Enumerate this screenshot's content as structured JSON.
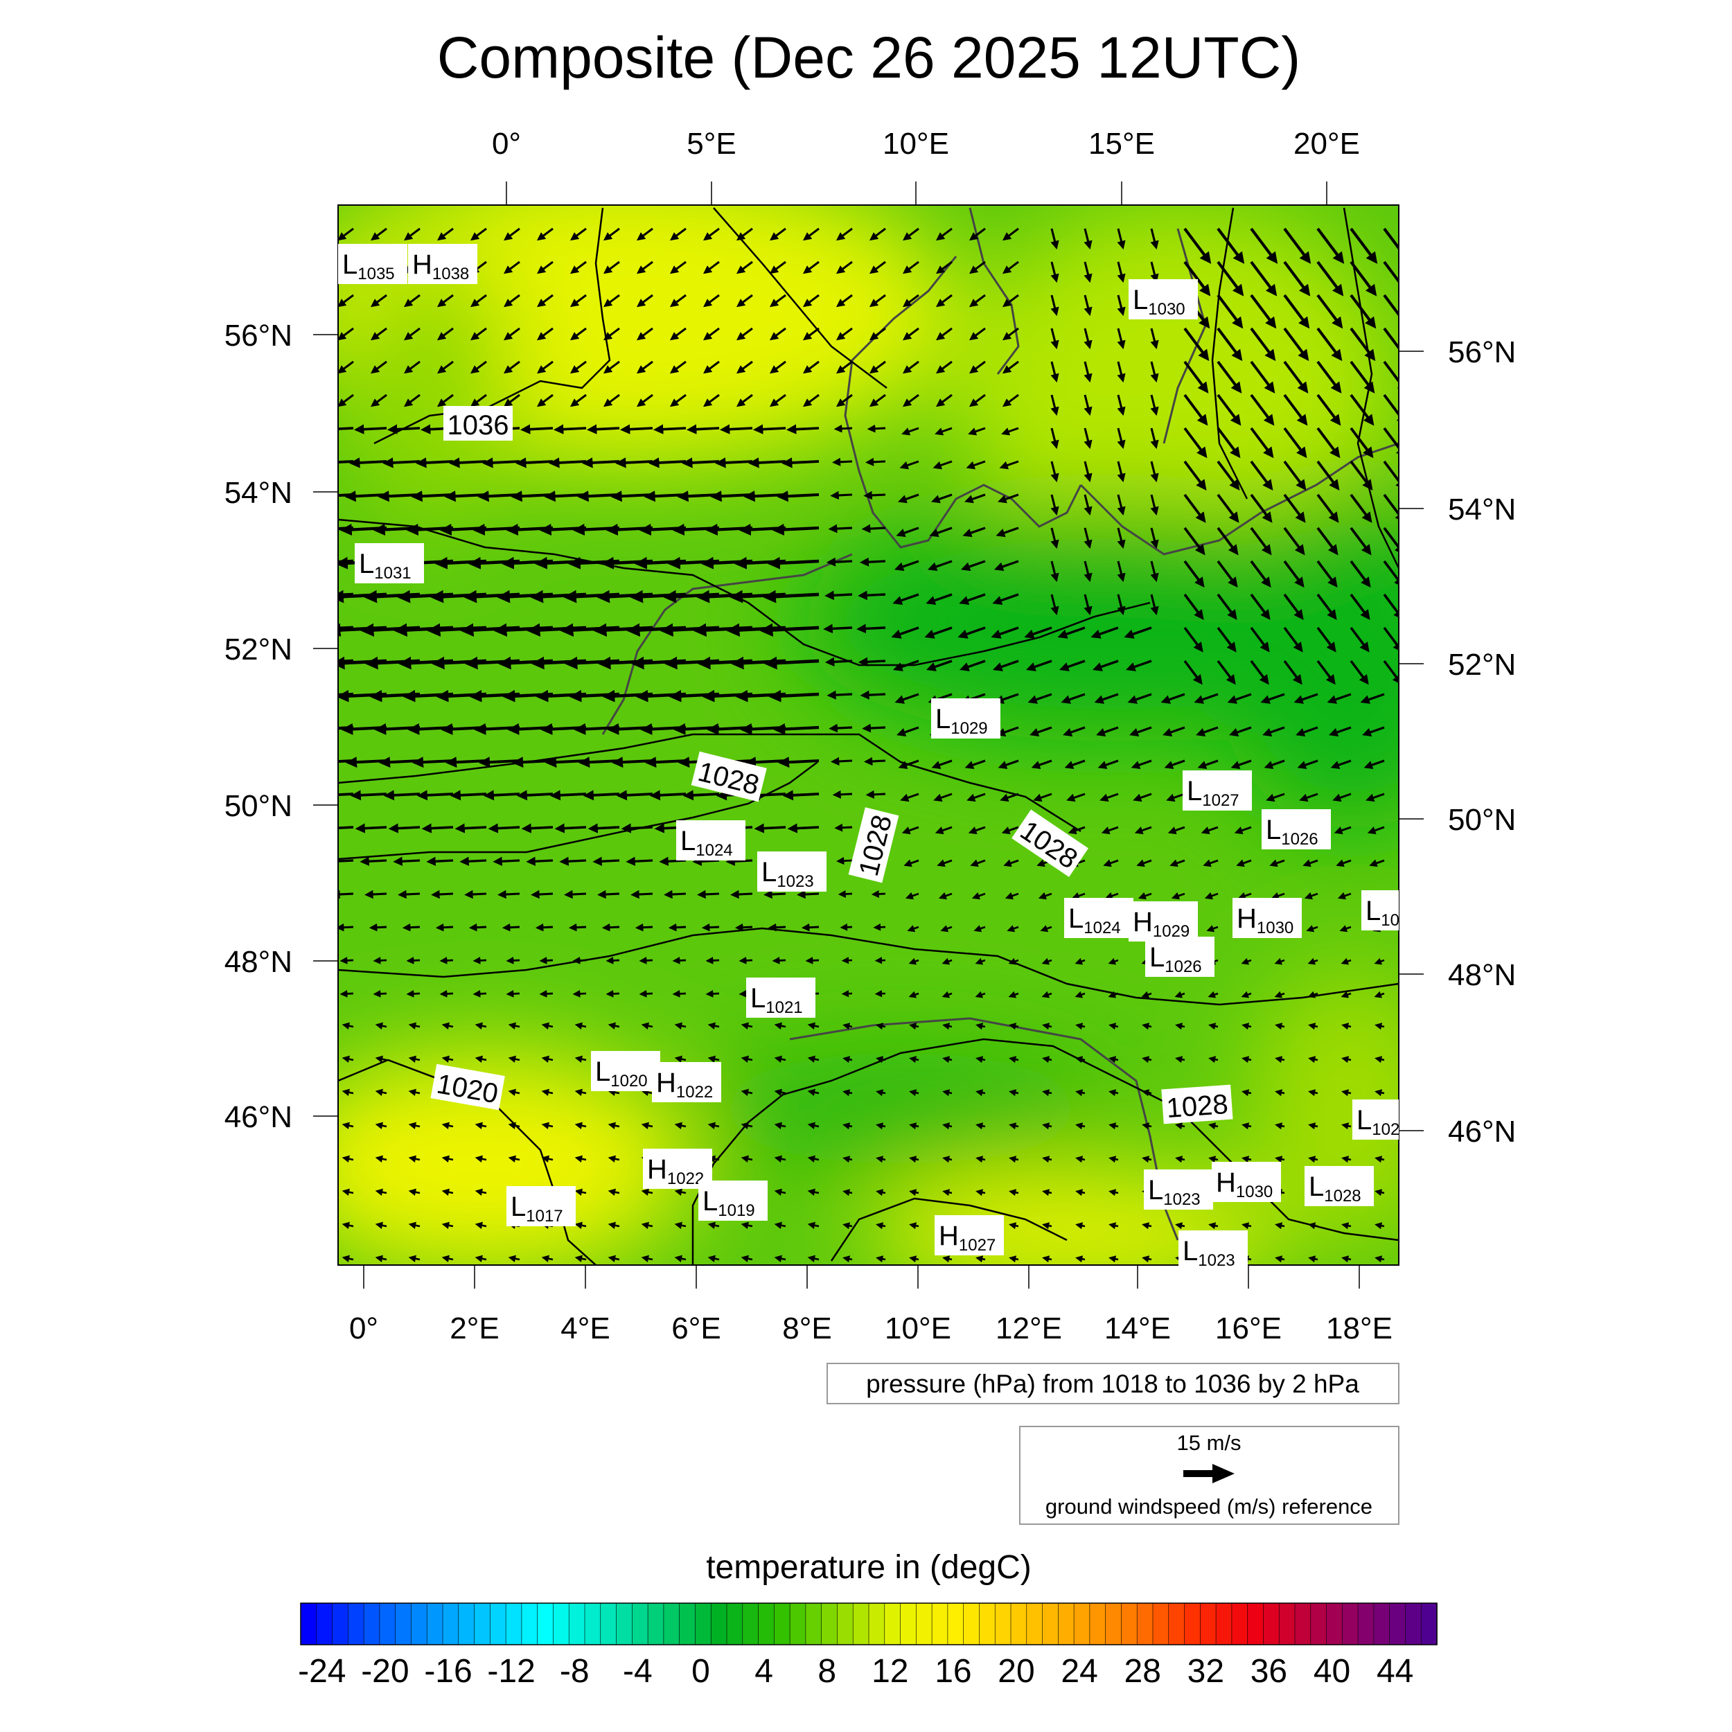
{
  "title": "Composite (Dec 26 2025 12UTC)",
  "top_lon_ticks": [
    "0°",
    "5°E",
    "10°E",
    "15°E",
    "20°E"
  ],
  "bottom_lon_ticks": [
    "0°",
    "2°E",
    "4°E",
    "6°E",
    "8°E",
    "10°E",
    "12°E",
    "14°E",
    "16°E",
    "18°E"
  ],
  "left_lat_ticks": [
    "56°N",
    "54°N",
    "52°N",
    "50°N",
    "48°N",
    "46°N"
  ],
  "right_lat_ticks": [
    "56°N",
    "54°N",
    "52°N",
    "50°N",
    "48°N",
    "46°N"
  ],
  "pressure_centers": [
    {
      "type": "L",
      "value": "1035"
    },
    {
      "type": "H",
      "value": "1038"
    },
    {
      "type": "L",
      "value": "1030"
    },
    {
      "type": "L",
      "value": "1031"
    },
    {
      "type": "L",
      "value": "1029"
    },
    {
      "type": "L",
      "value": "1027"
    },
    {
      "type": "L",
      "value": "1026"
    },
    {
      "type": "L",
      "value": "1024"
    },
    {
      "type": "L",
      "value": "1023"
    },
    {
      "type": "L",
      "value": "1024"
    },
    {
      "type": "H",
      "value": "1029"
    },
    {
      "type": "H",
      "value": "1030"
    },
    {
      "type": "L",
      "value": "10"
    },
    {
      "type": "L",
      "value": "1026"
    },
    {
      "type": "L",
      "value": "1021"
    },
    {
      "type": "L",
      "value": "1020"
    },
    {
      "type": "H",
      "value": "1022"
    },
    {
      "type": "L",
      "value": "102"
    },
    {
      "type": "H",
      "value": "1022"
    },
    {
      "type": "L",
      "value": "1019"
    },
    {
      "type": "L",
      "value": "1017"
    },
    {
      "type": "L",
      "value": "1023"
    },
    {
      "type": "H",
      "value": "1030"
    },
    {
      "type": "L",
      "value": "1028"
    },
    {
      "type": "H",
      "value": "1027"
    },
    {
      "type": "L",
      "value": "1023"
    }
  ],
  "isobar_labels": [
    "1036",
    "1028",
    "1028",
    "1028",
    "1020",
    "1028"
  ],
  "legend": {
    "pressure": "pressure (hPa) from 1018 to 1036 by 2 hPa",
    "wind_ref_value": "15 m/s",
    "wind_ref_label": "ground windspeed (m/s) reference"
  },
  "colorbar": {
    "title": "temperature in (degC)",
    "ticks": [
      "-24",
      "-20",
      "-16",
      "-12",
      "-8",
      "-4",
      "0",
      "4",
      "8",
      "12",
      "16",
      "20",
      "24",
      "28",
      "32",
      "36",
      "40",
      "44"
    ],
    "stops": [
      "#0000ff",
      "#0050ff",
      "#0090ff",
      "#00c8ff",
      "#00ffff",
      "#00e8c0",
      "#00cc70",
      "#00b020",
      "#30c000",
      "#90dc00",
      "#e8f400",
      "#ffee00",
      "#ffcc00",
      "#ffa800",
      "#ff7800",
      "#ff3000",
      "#f00010",
      "#b80040",
      "#800070",
      "#500090"
    ]
  }
}
